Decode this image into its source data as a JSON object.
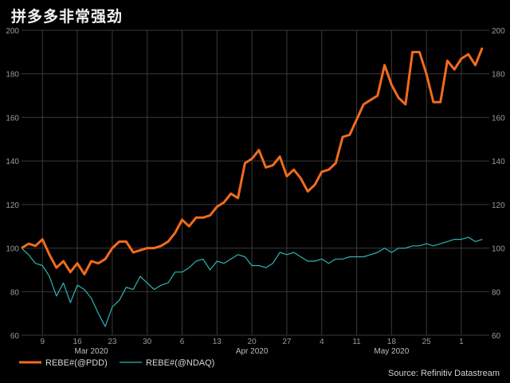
{
  "title": "拼多多非常强劲",
  "source": "Source: Refinitiv Datastream",
  "chart_data": {
    "type": "line",
    "ylim": [
      60,
      200
    ],
    "yticks": [
      60,
      80,
      100,
      120,
      140,
      160,
      180,
      200
    ],
    "grid": true,
    "legend_position": "bottom-left",
    "x_day_ticks": [
      {
        "i": 3,
        "label": "9"
      },
      {
        "i": 8,
        "label": "16"
      },
      {
        "i": 13,
        "label": "23"
      },
      {
        "i": 18,
        "label": "30"
      },
      {
        "i": 23,
        "label": "6"
      },
      {
        "i": 28,
        "label": "13"
      },
      {
        "i": 33,
        "label": "20"
      },
      {
        "i": 38,
        "label": "27"
      },
      {
        "i": 43,
        "label": "4"
      },
      {
        "i": 48,
        "label": "11"
      },
      {
        "i": 53,
        "label": "18"
      },
      {
        "i": 58,
        "label": "25"
      },
      {
        "i": 63,
        "label": "1"
      }
    ],
    "month_labels": [
      {
        "i": 10,
        "label": "Mar 2020"
      },
      {
        "i": 33,
        "label": "Apr 2020"
      },
      {
        "i": 53,
        "label": "May 2020"
      }
    ],
    "x_count": 68,
    "series": [
      {
        "name": "REBE#(@PDD)",
        "color": "#f26b1d",
        "values": [
          100,
          102,
          101,
          104,
          97,
          91,
          94,
          89,
          93,
          88,
          94,
          93,
          95,
          100,
          103,
          103,
          98,
          99,
          100,
          100,
          101,
          103,
          107,
          113,
          110,
          114,
          114,
          115,
          119,
          121,
          125,
          123,
          139,
          141,
          145,
          137,
          138,
          142,
          133,
          136,
          132,
          126,
          129,
          135,
          136,
          139,
          151,
          152,
          159,
          166,
          168,
          170,
          184,
          175,
          169,
          166,
          190,
          190,
          180,
          167,
          167,
          186,
          182,
          187,
          189,
          184,
          192
        ]
      },
      {
        "name": "REBE#(@NDAQ)",
        "color": "#2fb3b3",
        "values": [
          100,
          97,
          93,
          92,
          87,
          78,
          84,
          75,
          83,
          81,
          77,
          70,
          64,
          73,
          76,
          82,
          81,
          87,
          84,
          81,
          83,
          84,
          89,
          89,
          91,
          94,
          95,
          90,
          94,
          93,
          95,
          97,
          96,
          92,
          92,
          91,
          93,
          98,
          97,
          98,
          96,
          94,
          94,
          95,
          93,
          95,
          95,
          96,
          96,
          96,
          97,
          98,
          100,
          98,
          100,
          100,
          101,
          101,
          102,
          101,
          102,
          103,
          104,
          104,
          105,
          103,
          104
        ]
      }
    ]
  }
}
